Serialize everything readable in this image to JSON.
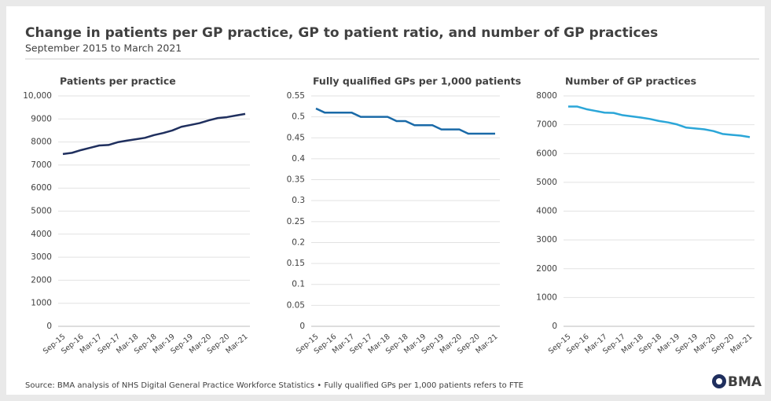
{
  "title": "Change in patients per GP practice, GP to patient ratio, and number of GP practices",
  "subtitle": "September 2015 to March 2021",
  "source": "Source: BMA analysis of NHS Digital General Practice Workforce Statistics • Fully qualified GPs per 1,000 patients refers to FTE",
  "logo": "BMA",
  "chart_data": [
    {
      "type": "line",
      "title": "Patients per practice",
      "color": "#1f2f5e",
      "categories": [
        "Sep-15",
        null,
        "Sep-16",
        null,
        "Mar-17",
        null,
        "Sep-17",
        null,
        "Mar-18",
        null,
        "Sep-18",
        null,
        "Mar-19",
        null,
        "Sep-19",
        null,
        "Mar-20",
        null,
        "Sep-20",
        null,
        "Mar-21"
      ],
      "values": [
        7480,
        7530,
        7650,
        7750,
        7850,
        7870,
        7990,
        8060,
        8120,
        8180,
        8300,
        8390,
        8500,
        8660,
        8740,
        8820,
        8940,
        9040,
        9080,
        9150,
        9220
      ],
      "ylim": [
        0,
        10000
      ],
      "yticks": [
        0,
        1000,
        2000,
        3000,
        4000,
        5000,
        6000,
        7000,
        8000,
        9000,
        {
          "value": 10000,
          "label": "10,000"
        }
      ],
      "grid": true
    },
    {
      "type": "line",
      "title": "Fully qualified GPs per 1,000 patients",
      "color": "#1a6aa8",
      "categories": [
        "Sep-15",
        null,
        "Sep-16",
        null,
        "Mar-17",
        null,
        "Sep-17",
        null,
        "Mar-18",
        null,
        "Sep-18",
        null,
        "Mar-19",
        null,
        "Sep-19",
        null,
        "Mar-20",
        null,
        "Sep-20",
        null,
        "Mar-21"
      ],
      "values": [
        0.52,
        0.51,
        0.51,
        0.51,
        0.51,
        0.5,
        0.5,
        0.5,
        0.5,
        0.49,
        0.49,
        0.48,
        0.48,
        0.48,
        0.47,
        0.47,
        0.47,
        0.46,
        0.46,
        0.46,
        0.46
      ],
      "ylim": [
        0,
        0.55
      ],
      "yticks": [
        0,
        0.05,
        0.1,
        0.15,
        0.2,
        0.25,
        0.3,
        0.35,
        0.4,
        0.45,
        0.5,
        0.55
      ],
      "grid": true
    },
    {
      "type": "line",
      "title": "Number of GP practices",
      "color": "#2ba6d8",
      "categories": [
        "Sep-15",
        null,
        "Sep-16",
        null,
        "Mar-17",
        null,
        "Sep-17",
        null,
        "Mar-18",
        null,
        "Sep-18",
        null,
        "Mar-19",
        null,
        "Sep-19",
        null,
        "Mar-20",
        null,
        "Sep-20",
        null,
        "Mar-21"
      ],
      "values": [
        7630,
        7630,
        7540,
        7480,
        7420,
        7410,
        7330,
        7290,
        7250,
        7200,
        7130,
        7080,
        7010,
        6900,
        6870,
        6840,
        6780,
        6680,
        6650,
        6620,
        6570
      ],
      "ylim": [
        0,
        8000
      ],
      "yticks": [
        0,
        1000,
        2000,
        3000,
        4000,
        5000,
        6000,
        7000,
        8000
      ],
      "grid": true
    }
  ]
}
